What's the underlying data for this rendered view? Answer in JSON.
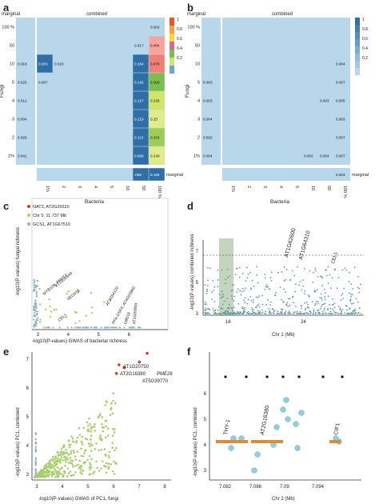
{
  "panels": {
    "a": {
      "letter": "a",
      "header_marginal": "marginal",
      "header_combined": "combined",
      "y_title": "Fungi",
      "x_title": "Bacteria",
      "row_labels": [
        "100 %",
        "50",
        "10",
        "5",
        "4",
        "3",
        "2",
        "1%"
      ],
      "col_labels": [
        "1%",
        "2",
        "3",
        "4",
        "5",
        "10",
        "50",
        "100 %"
      ],
      "bottom_marginal_label": "marginal",
      "colorbar_ticks": [
        "1",
        "0.8",
        "0.6",
        "0.4",
        "0.2"
      ],
      "left_marginal": [
        "",
        "",
        "0.018",
        "0.025",
        "0.012",
        "0.004",
        "0.029",
        "0.041"
      ],
      "bottom_marginal": [
        "",
        "",
        "",
        "",
        "",
        "",
        ".065",
        "0.182"
      ],
      "cells": [
        {
          "r": 0,
          "c": 7,
          "v": "0.002",
          "color": "#b9d7ea"
        },
        {
          "r": 1,
          "c": 6,
          "v": "0.017",
          "color": "#b9d7ea"
        },
        {
          "r": 1,
          "c": 7,
          "v": "0.404",
          "color": "#f9a39c"
        },
        {
          "r": 2,
          "c": 0,
          "v": "0.003",
          "color": "#2f6fa6"
        },
        {
          "r": 2,
          "c": 1,
          "v": "0.018",
          "color": "#b9d7ea"
        },
        {
          "r": 2,
          "c": 6,
          "v": "0.164",
          "color": "#2f6fa6"
        },
        {
          "r": 2,
          "c": 7,
          "v": "0.478",
          "color": "#f07f74"
        },
        {
          "r": 3,
          "c": 0,
          "v": "0.007",
          "color": "#b9d7ea"
        },
        {
          "r": 3,
          "c": 6,
          "v": "0.142",
          "color": "#2f6fa6"
        },
        {
          "r": 3,
          "c": 7,
          "v": "0.309",
          "color": "#7bbf4e"
        },
        {
          "r": 4,
          "c": 6,
          "v": "0.127",
          "color": "#2f6fa6"
        },
        {
          "r": 4,
          "c": 7,
          "v": "0.236",
          "color": "#cfe66a"
        },
        {
          "r": 5,
          "c": 6,
          "v": "0.123",
          "color": "#2f6fa6"
        },
        {
          "r": 5,
          "c": 7,
          "v": "0.25",
          "color": "#dfec8a"
        },
        {
          "r": 6,
          "c": 6,
          "v": "0.113",
          "color": "#2f6fa6"
        },
        {
          "r": 6,
          "c": 7,
          "v": "0.234",
          "color": "#9dcd55"
        },
        {
          "r": 7,
          "c": 6,
          "v": "0.099",
          "color": "#2f6fa6"
        },
        {
          "r": 7,
          "c": 7,
          "v": "0.249",
          "color": "#dfec8a"
        }
      ]
    },
    "b": {
      "letter": "b",
      "header_marginal": "marginal",
      "header_combined": "combined",
      "y_title": "Fungi",
      "x_title": "Bacteria",
      "row_labels": [
        "100 %",
        "50",
        "10",
        "5",
        "4",
        "3",
        "2",
        "1%"
      ],
      "col_labels": [
        "1%",
        "2",
        "3",
        "4",
        "5",
        "10",
        "50",
        "100 %"
      ],
      "bottom_marginal_label": "marginal",
      "colorbar_ticks": [
        "1",
        "0.8",
        "0.6",
        "0.4",
        "0.2"
      ],
      "left_marginal": [
        "",
        "",
        "",
        "0.003",
        "0.003",
        "0.004",
        "0.002",
        "0.004"
      ],
      "bottom_marginal": [
        "",
        "",
        "",
        "",
        "",
        "",
        "",
        "0.003"
      ],
      "cells": [
        {
          "r": 2,
          "c": 7,
          "v": "0.004"
        },
        {
          "r": 3,
          "c": 7,
          "v": "0.007"
        },
        {
          "r": 4,
          "c": 6,
          "v": "0.003"
        },
        {
          "r": 4,
          "c": 7,
          "v": "0.005"
        },
        {
          "r": 5,
          "c": 7,
          "v": "0.003"
        },
        {
          "r": 6,
          "c": 7,
          "v": "0.007"
        },
        {
          "r": 7,
          "c": 5,
          "v": "0.002"
        },
        {
          "r": 7,
          "c": 6,
          "v": "0.004"
        },
        {
          "r": 7,
          "c": 7,
          "v": "0.007"
        }
      ]
    },
    "c": {
      "letter": "c",
      "legend": [
        "NAT3, AT2G26520",
        "Chr 5. 11.737 Mb",
        "GCS1, AT1G67510"
      ],
      "y_title": "-log10(P-values) fungal richness",
      "x_title": "-log10(P-values) GWAS of bacterial richness",
      "x_ticks": [
        "3",
        "4",
        "5",
        "6"
      ],
      "y_ticks": [
        "3",
        "4",
        "5",
        "6",
        "7",
        "8"
      ],
      "gene_labels": [
        "AT1G31540",
        "MYB109, PRDT2",
        "SEC61β",
        "AT3G54120",
        "CEL1",
        "PFA-DSP4, AT4G03960",
        "LBD18",
        "AT1G60900"
      ]
    },
    "d": {
      "letter": "d",
      "y_title": "-log10(P-values) combined richness",
      "x_title": "Chr 1 (Mb)",
      "x_ticks": [
        "16",
        "24"
      ],
      "y_ticks": [
        "3",
        "5",
        "7"
      ],
      "gene_labels": [
        "AT1G62600",
        "AT1G64310",
        "CEL1"
      ]
    },
    "e": {
      "letter": "e",
      "y_title": "-log10(P-values) PC1, combined",
      "x_title": "-log10(P-values) GWAS of PC1, fungi",
      "x_ticks": [
        "3",
        "4",
        "5",
        "6",
        "7",
        "8"
      ],
      "y_ticks": [
        "3",
        "4",
        "5",
        "6",
        "7"
      ],
      "gene_labels": [
        "AT1G20750",
        "AT2G16380",
        "PME26",
        "AT5G39770"
      ]
    },
    "f": {
      "letter": "f",
      "y_title": "-log10(P-values) PC1, combined",
      "x_title": "Chr 2 (Mb)",
      "x_ticks": [
        "7.082",
        "7.086",
        "7.09",
        "7.094"
      ],
      "y_ticks": [
        "3",
        "4",
        "5",
        "6"
      ],
      "gene_labels": [
        "THY-1",
        "AT2G16380",
        "CIF1"
      ]
    }
  },
  "colors": {
    "heat_bg": "#b9d7ea",
    "heat_dark": "#2f6fa6",
    "scatter_teal": "#5c9aa6",
    "scatter_green": "#a8cf6c",
    "scatter_red": "#d33a2c",
    "highlight_band": "#9eb88f"
  }
}
